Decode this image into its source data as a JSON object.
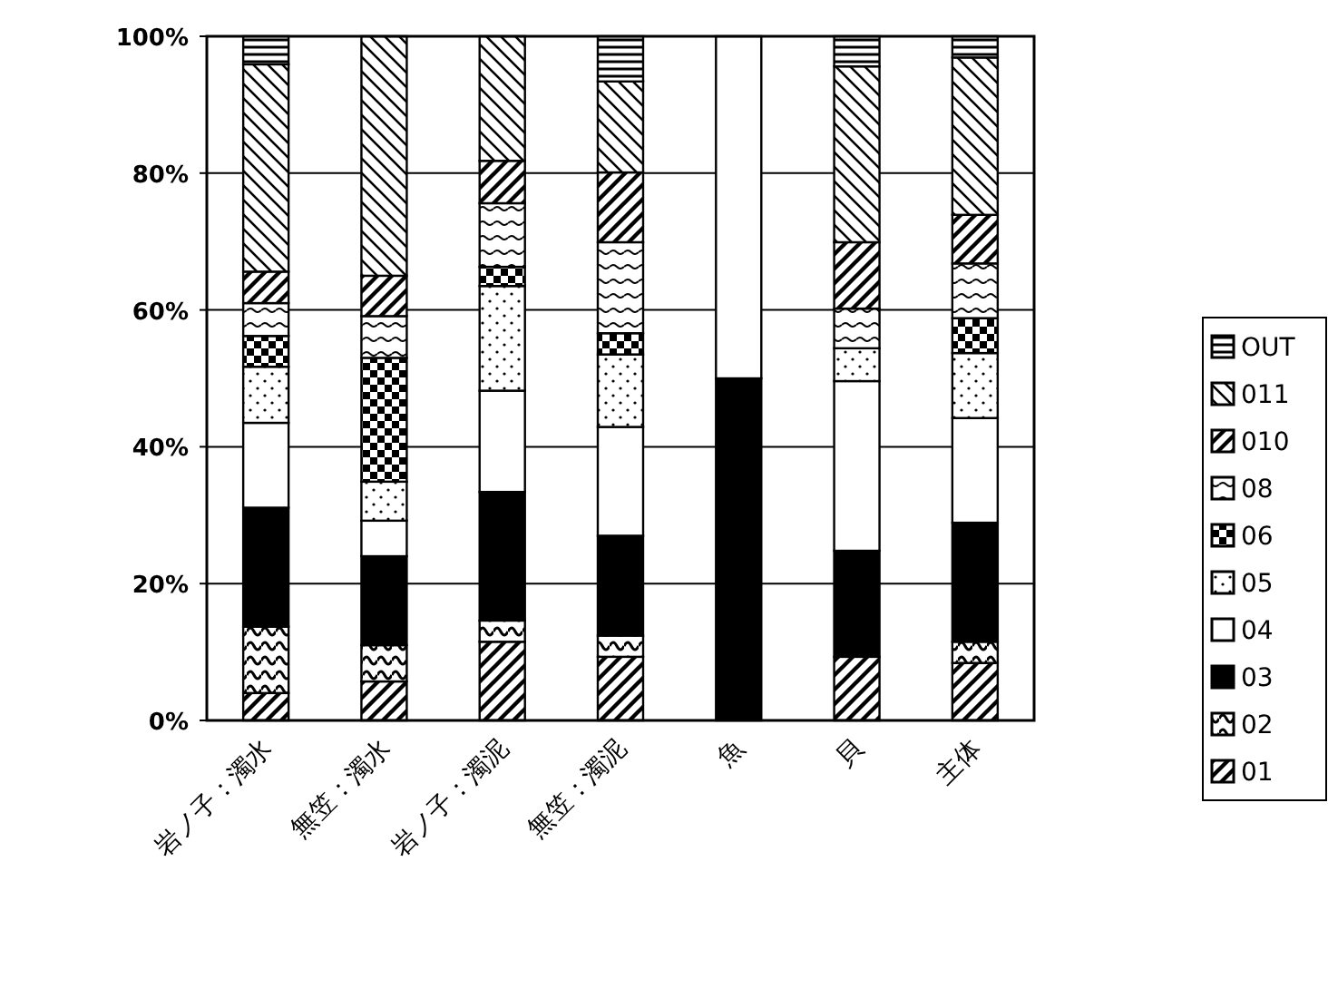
{
  "chart_data": {
    "type": "bar",
    "stacked": true,
    "legend": "right",
    "grid": "y",
    "categories": [
      "岩ノ子：濁水",
      "無笠：濁水",
      "岩ノ子：濁泥",
      "無笠：濁泥",
      "魚",
      "貝",
      "主体"
    ],
    "ylim": [
      0,
      100
    ],
    "yticks": [
      {
        "value": 0,
        "label": "0%"
      },
      {
        "value": 20,
        "label": "20%"
      },
      {
        "value": 40,
        "label": "40%"
      },
      {
        "value": 60,
        "label": "60%"
      },
      {
        "value": 80,
        "label": "80%"
      },
      {
        "value": 100,
        "label": "100%"
      }
    ],
    "series": [
      {
        "name": "01",
        "color": "#000000",
        "values": [
          4.0,
          5.7,
          11.5,
          9.3,
          0,
          9.3,
          8.4
        ]
      },
      {
        "name": "02",
        "color": "#000000",
        "values": [
          9.7,
          5.3,
          3.1,
          3.1,
          0,
          0,
          3.1
        ]
      },
      {
        "name": "03",
        "color": "#000000",
        "values": [
          17.4,
          13.0,
          18.8,
          14.6,
          50,
          15.5,
          17.4
        ]
      },
      {
        "name": "04",
        "color": "#ffffff",
        "values": [
          12.4,
          5.2,
          14.8,
          15.9,
          50,
          24.8,
          15.3
        ]
      },
      {
        "name": "05",
        "color": "#000000",
        "values": [
          8.2,
          5.7,
          15.3,
          10.6,
          0,
          4.8,
          9.5
        ]
      },
      {
        "name": "06",
        "color": "#000000",
        "values": [
          4.5,
          18.1,
          2.8,
          3.1,
          0,
          0,
          5.1
        ]
      },
      {
        "name": "08",
        "color": "#000000",
        "values": [
          4.8,
          6.1,
          9.3,
          13.3,
          0,
          5.8,
          8.0
        ]
      },
      {
        "name": "010",
        "color": "#000000",
        "values": [
          4.6,
          5.9,
          6.2,
          10.2,
          0,
          9.7,
          7.1
        ]
      },
      {
        "name": "011",
        "color": "#000000",
        "values": [
          30.3,
          35.0,
          18.2,
          13.3,
          0,
          25.7,
          23.0
        ]
      },
      {
        "name": "OUT",
        "color": "#000000",
        "values": [
          4.1,
          0,
          0,
          6.6,
          0,
          4.4,
          3.1
        ]
      }
    ]
  }
}
